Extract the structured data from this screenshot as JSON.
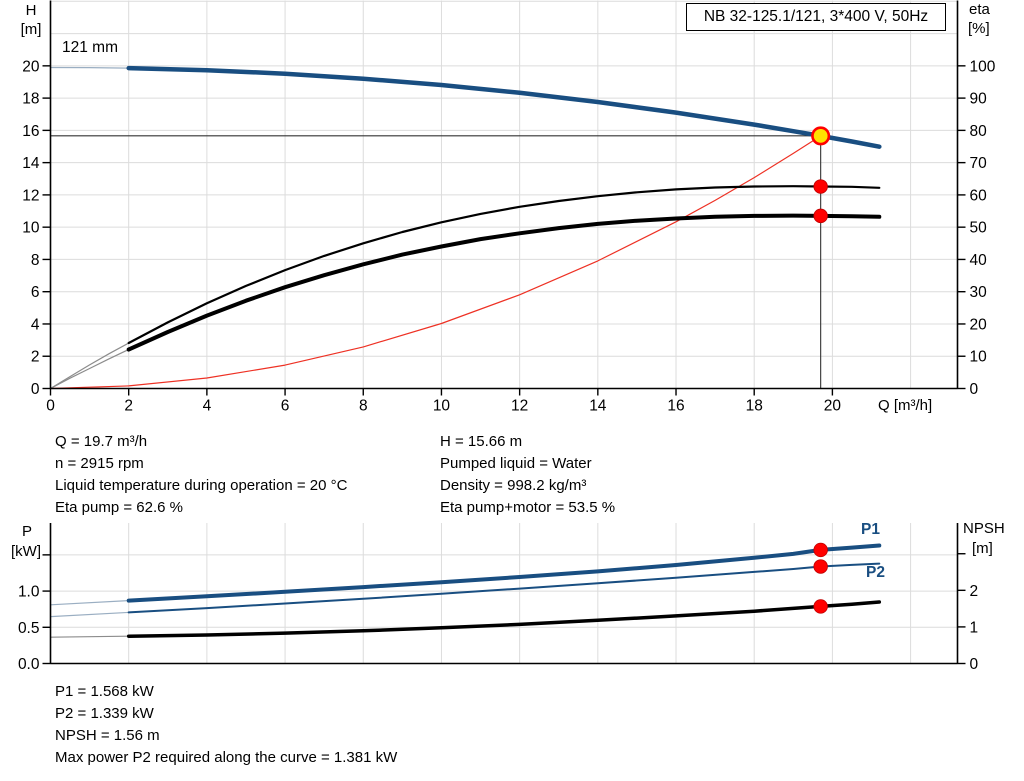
{
  "title_box": {
    "text": "NB 32-125.1/121, 3*400 V, 50Hz"
  },
  "labels": {
    "h_top": "H",
    "h_unit": "[m]",
    "eta_top": "eta",
    "eta_unit": "[%]",
    "q_axis": "Q [m³/h]",
    "impeller": "121 mm",
    "p_top": "P",
    "p_unit": "[kW]",
    "npsh_top": "NPSH",
    "npsh_unit": "[m]",
    "p1": "P1",
    "p2": "P2"
  },
  "info_block": {
    "left": [
      "Q = 19.7 m³/h",
      "n = 2915 rpm",
      "Liquid temperature during operation = 20 °C",
      "Eta pump = 62.6 %"
    ],
    "right": [
      "H = 15.66 m",
      "Pumped liquid = Water",
      "Density = 998.2 kg/m³",
      "Eta pump+motor = 53.5 %"
    ]
  },
  "result_block": [
    "P1 = 1.568 kW",
    "P2 = 1.339 kW",
    "NPSH = 1.56 m",
    "Max power P2 required along the curve = 1.381 kW"
  ],
  "colors": {
    "curve_blue": "#194E81",
    "curve_blue_thin": "#9AAEC2",
    "black": "#000000",
    "gray_thin": "#8C8C8C",
    "red": "#EE3124",
    "dot_red": "#FF0000",
    "dot_red_edge": "#C00000",
    "op_yellow": "#FFE100",
    "grid": "#DCDCDC",
    "axis": "#000000",
    "ref_line": "#333333",
    "label_blue": "#194E81"
  },
  "chart_data": [
    {
      "id": "head-efficiency-chart",
      "type": "line",
      "title": "NB 32-125.1/121, 3*400 V, 50Hz",
      "x": {
        "label": "Q [m³/h]",
        "min": 0,
        "max": 23.2,
        "ticks": [
          0,
          2,
          4,
          6,
          8,
          10,
          12,
          14,
          16,
          18,
          20
        ],
        "tick_labels": [
          "0",
          "2",
          "4",
          "6",
          "8",
          "10",
          "12",
          "14",
          "16",
          "18",
          "20"
        ],
        "grid": [
          2,
          4,
          6,
          8,
          10,
          12,
          14,
          16,
          18,
          20,
          22
        ]
      },
      "y_left": {
        "label": "H [m]",
        "min": 0,
        "max": 24.05,
        "ticks": [
          0,
          2,
          4,
          6,
          8,
          10,
          12,
          14,
          16,
          18,
          20
        ],
        "tick_labels": [
          "0",
          "2",
          "4",
          "6",
          "8",
          "10",
          "12",
          "14",
          "16",
          "18",
          "20"
        ],
        "grid": [
          2,
          4,
          6,
          8,
          10,
          12,
          14,
          16,
          18,
          20,
          22,
          24
        ],
        "minor_ticks": []
      },
      "y_right": {
        "label": "eta [%]",
        "min": 0,
        "max": 120.25,
        "ticks": [
          0,
          10,
          20,
          30,
          40,
          50,
          60,
          70,
          80,
          90,
          100
        ],
        "tick_labels": [
          "0",
          "10",
          "20",
          "30",
          "40",
          "50",
          "60",
          "70",
          "80",
          "90",
          "100"
        ],
        "minor_ticks": []
      },
      "series": [
        {
          "name": "system-curve",
          "axis": "left",
          "color": "red",
          "width": 1.2,
          "points": [
            [
              0,
              0
            ],
            [
              2,
              0.16
            ],
            [
              4,
              0.65
            ],
            [
              6,
              1.45
            ],
            [
              8,
              2.58
            ],
            [
              10,
              4.03
            ],
            [
              12,
              5.81
            ],
            [
              14,
              7.91
            ],
            [
              16,
              10.33
            ],
            [
              17,
              11.66
            ],
            [
              18,
              13.07
            ],
            [
              19,
              14.57
            ],
            [
              19.7,
              15.66
            ]
          ]
        },
        {
          "name": "eta-pump",
          "axis": "right",
          "color": "black",
          "thin_color": "gray_thin",
          "width": 2.2,
          "thin_until": 1.9,
          "points": [
            [
              0,
              0
            ],
            [
              0.5,
              3.7
            ],
            [
              1,
              7.3
            ],
            [
              1.5,
              10.8
            ],
            [
              2,
              14.1
            ],
            [
              3,
              20.5
            ],
            [
              4,
              26.4
            ],
            [
              5,
              31.8
            ],
            [
              6,
              36.7
            ],
            [
              7,
              41.1
            ],
            [
              8,
              45
            ],
            [
              9,
              48.5
            ],
            [
              10,
              51.5
            ],
            [
              11,
              54.1
            ],
            [
              12,
              56.3
            ],
            [
              13,
              58.1
            ],
            [
              14,
              59.6
            ],
            [
              15,
              60.8
            ],
            [
              16,
              61.7
            ],
            [
              17,
              62.3
            ],
            [
              18,
              62.6
            ],
            [
              19,
              62.7
            ],
            [
              19.7,
              62.6
            ],
            [
              20.5,
              62.5
            ],
            [
              21.2,
              62.2
            ]
          ]
        },
        {
          "name": "eta-pump-motor",
          "axis": "right",
          "color": "black",
          "thin_color": "gray_thin",
          "width": 4,
          "thin_until": 1.9,
          "points": [
            [
              0,
              0
            ],
            [
              0.5,
              3.2
            ],
            [
              1,
              6.2
            ],
            [
              1.5,
              9.2
            ],
            [
              2,
              12.1
            ],
            [
              3,
              17.5
            ],
            [
              4,
              22.6
            ],
            [
              5,
              27.2
            ],
            [
              6,
              31.4
            ],
            [
              7,
              35.1
            ],
            [
              8,
              38.5
            ],
            [
              9,
              41.5
            ],
            [
              10,
              44
            ],
            [
              11,
              46.3
            ],
            [
              12,
              48.1
            ],
            [
              13,
              49.7
            ],
            [
              14,
              51
            ],
            [
              15,
              52
            ],
            [
              16,
              52.7
            ],
            [
              17,
              53.2
            ],
            [
              18,
              53.5
            ],
            [
              19,
              53.6
            ],
            [
              19.7,
              53.5
            ],
            [
              20.5,
              53.4
            ],
            [
              21.2,
              53.2
            ]
          ]
        },
        {
          "name": "head-121mm",
          "label": "121 mm",
          "axis": "left",
          "color": "curve_blue",
          "thin_color": "curve_blue_thin",
          "width": 4.5,
          "thin_until": 1.9,
          "points": [
            [
              0,
              19.9
            ],
            [
              1,
              19.89
            ],
            [
              2,
              19.86
            ],
            [
              4,
              19.73
            ],
            [
              6,
              19.51
            ],
            [
              8,
              19.2
            ],
            [
              10,
              18.81
            ],
            [
              12,
              18.33
            ],
            [
              14,
              17.76
            ],
            [
              16,
              17.1
            ],
            [
              18,
              16.36
            ],
            [
              19,
              15.95
            ],
            [
              19.7,
              15.66
            ],
            [
              20.5,
              15.31
            ],
            [
              21.2,
              14.99
            ]
          ]
        }
      ],
      "ref_lines": [
        {
          "name": "head-ref-line",
          "axis": "left",
          "from": [
            0,
            15.66
          ],
          "to": [
            19.7,
            15.66
          ]
        },
        {
          "name": "flow-ref-line",
          "axis": "left",
          "from": [
            19.7,
            0
          ],
          "to": [
            19.7,
            15.66
          ]
        }
      ],
      "markers": [
        {
          "name": "eta-pump-point",
          "axis": "right",
          "x": 19.7,
          "y": 62.6,
          "style": "dot"
        },
        {
          "name": "eta-pump-motor-point",
          "axis": "right",
          "x": 19.7,
          "y": 53.5,
          "style": "dot"
        },
        {
          "name": "duty-point",
          "axis": "left",
          "x": 19.7,
          "y": 15.66,
          "style": "op"
        }
      ]
    },
    {
      "id": "power-npsh-chart",
      "type": "line",
      "x": {
        "label": "",
        "min": 0,
        "max": 23.2,
        "ticks": [],
        "tick_labels": [],
        "grid": [
          2,
          4,
          6,
          8,
          10,
          12,
          14,
          16,
          18,
          20,
          22
        ]
      },
      "y_left": {
        "label": "P [kW]",
        "min": 0,
        "max": 1.94,
        "ticks": [
          0,
          0.5,
          1
        ],
        "tick_labels": [
          "0.0",
          "0.5",
          "1.0"
        ],
        "grid": [
          0.5,
          1,
          1.5
        ],
        "minor_ticks": [
          1.5
        ]
      },
      "y_right": {
        "label": "NPSH [m]",
        "min": 0,
        "max": 3.84,
        "ticks": [
          0,
          1,
          2
        ],
        "tick_labels": [
          "0",
          "1",
          "2"
        ],
        "minor_ticks": [
          3
        ]
      },
      "series": [
        {
          "name": "p1-power",
          "label": "P1",
          "axis": "left",
          "color": "curve_blue",
          "thin_color": "curve_blue_thin",
          "width": 4,
          "thin_until": 1.9,
          "points": [
            [
              0,
              0.81
            ],
            [
              2,
              0.868
            ],
            [
              4,
              0.928
            ],
            [
              6,
              0.99
            ],
            [
              8,
              1.055
            ],
            [
              10,
              1.122
            ],
            [
              12,
              1.194
            ],
            [
              14,
              1.272
            ],
            [
              16,
              1.36
            ],
            [
              18,
              1.46
            ],
            [
              19,
              1.513
            ],
            [
              19.7,
              1.568
            ],
            [
              20.5,
              1.6
            ],
            [
              21.2,
              1.63
            ]
          ]
        },
        {
          "name": "p2-power",
          "label": "P2",
          "axis": "left",
          "color": "curve_blue",
          "thin_color": "curve_blue_thin",
          "width": 2,
          "thin_until": 1.9,
          "points": [
            [
              0,
              0.648
            ],
            [
              2,
              0.705
            ],
            [
              4,
              0.765
            ],
            [
              6,
              0.828
            ],
            [
              8,
              0.893
            ],
            [
              10,
              0.962
            ],
            [
              12,
              1.034
            ],
            [
              14,
              1.108
            ],
            [
              16,
              1.185
            ],
            [
              18,
              1.265
            ],
            [
              19,
              1.305
            ],
            [
              19.7,
              1.339
            ],
            [
              20.5,
              1.362
            ],
            [
              21.2,
              1.379
            ]
          ]
        },
        {
          "name": "npsh",
          "axis": "right",
          "color": "black",
          "thin_color": "gray_thin",
          "width": 3.5,
          "thin_until": 1.9,
          "points": [
            [
              0,
              0.72
            ],
            [
              2,
              0.745
            ],
            [
              4,
              0.78
            ],
            [
              6,
              0.83
            ],
            [
              8,
              0.895
            ],
            [
              10,
              0.975
            ],
            [
              12,
              1.07
            ],
            [
              14,
              1.18
            ],
            [
              16,
              1.3
            ],
            [
              18,
              1.43
            ],
            [
              19.7,
              1.56
            ],
            [
              20.5,
              1.62
            ],
            [
              21.2,
              1.68
            ]
          ]
        }
      ],
      "ref_lines": [],
      "markers": [
        {
          "name": "p1-point",
          "axis": "left",
          "x": 19.7,
          "y": 1.568,
          "style": "dot"
        },
        {
          "name": "p2-point",
          "axis": "left",
          "x": 19.7,
          "y": 1.339,
          "style": "dot"
        },
        {
          "name": "npsh-point",
          "axis": "right",
          "x": 19.7,
          "y": 1.56,
          "style": "dot"
        }
      ]
    }
  ]
}
